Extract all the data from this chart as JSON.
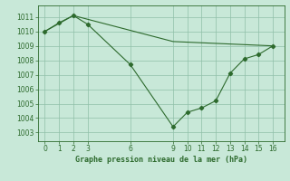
{
  "line1_x": [
    0,
    2,
    9,
    16
  ],
  "line1_y": [
    1010.0,
    1011.1,
    1009.3,
    1009.0
  ],
  "line2_x": [
    0,
    1,
    2,
    3,
    6,
    9,
    10,
    11,
    12,
    13,
    14,
    15,
    16
  ],
  "line2_y": [
    1010.0,
    1010.6,
    1011.1,
    1010.5,
    1007.7,
    1003.4,
    1004.4,
    1004.7,
    1005.2,
    1007.1,
    1008.1,
    1008.4,
    1009.0
  ],
  "color": "#2d6a2d",
  "bg_color": "#c8e8d8",
  "grid_color": "#8fbfa8",
  "xlabel": "Graphe pression niveau de la mer (hPa)",
  "xlabel_fontsize": 6.0,
  "ylabel_ticks": [
    1003,
    1004,
    1005,
    1006,
    1007,
    1008,
    1009,
    1010,
    1011
  ],
  "xticks": [
    0,
    1,
    2,
    3,
    6,
    9,
    10,
    11,
    12,
    13,
    14,
    15,
    16
  ],
  "xlim": [
    -0.5,
    16.8
  ],
  "ylim": [
    1002.4,
    1011.8
  ]
}
